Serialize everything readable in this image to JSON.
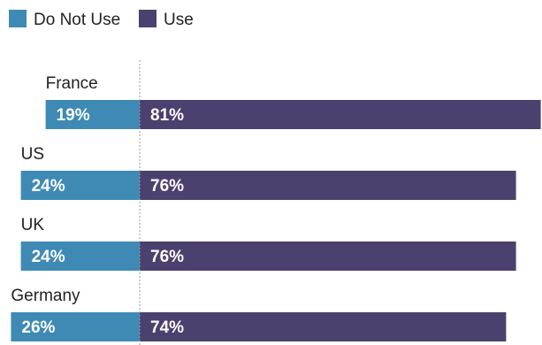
{
  "colors": {
    "do_not_use": "#3f8ab5",
    "use": "#4a416e",
    "divider": "#999999"
  },
  "legend": [
    {
      "label": "Do Not Use",
      "color_key": "do_not_use"
    },
    {
      "label": "Use",
      "color_key": "use"
    }
  ],
  "chart_data": {
    "type": "bar",
    "orientation": "horizontal",
    "stacked": true,
    "categories": [
      "France",
      "US",
      "UK",
      "Germany"
    ],
    "series": [
      {
        "name": "Do Not Use",
        "values": [
          19,
          24,
          24,
          26
        ],
        "value_labels": [
          "19%",
          "24%",
          "24%",
          "26%"
        ]
      },
      {
        "name": "Use",
        "values": [
          81,
          76,
          76,
          74
        ],
        "value_labels": [
          "81%",
          "76%",
          "76%",
          "74%"
        ]
      }
    ],
    "unit": "%",
    "title": "",
    "xlabel": "",
    "ylabel": "",
    "legend_position": "top-left",
    "grid": false
  }
}
